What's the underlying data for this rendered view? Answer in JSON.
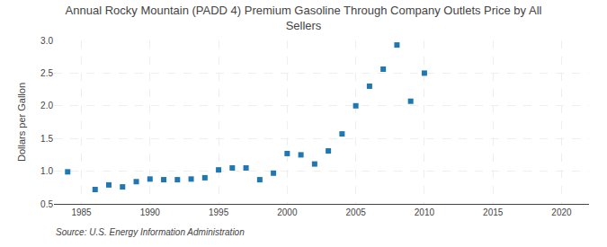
{
  "chart_data": {
    "type": "scatter",
    "title": "Annual Rocky Mountain (PADD 4) Premium Gasoline Through Company Outlets Price by All\nSellers",
    "ylabel": "Dollars per Gallon",
    "annotations": [
      "Source: U.S. Energy Information Administration"
    ],
    "marker": "square",
    "grid": true,
    "x": [
      1984,
      1986,
      1987,
      1988,
      1989,
      1990,
      1991,
      1992,
      1993,
      1994,
      1995,
      1996,
      1997,
      1998,
      1999,
      2000,
      2001,
      2002,
      2003,
      2004,
      2005,
      2006,
      2007,
      2008,
      2009,
      2010
    ],
    "values": [
      0.99,
      0.72,
      0.79,
      0.76,
      0.84,
      0.88,
      0.87,
      0.87,
      0.88,
      0.9,
      1.02,
      1.05,
      1.05,
      0.87,
      0.97,
      1.27,
      1.25,
      1.11,
      1.31,
      1.57,
      2.0,
      2.3,
      2.56,
      2.93,
      2.07,
      2.5
    ],
    "xlim": [
      1983,
      2022
    ],
    "ylim": [
      0.5,
      3.0
    ],
    "xticks": [
      1985,
      1990,
      1995,
      2000,
      2005,
      2010,
      2015,
      2020
    ],
    "yticks": [
      0.5,
      {
        "value": 1.0,
        "label": "1.0"
      },
      1.5,
      {
        "value": 2.0,
        "label": "2.0"
      },
      2.5,
      {
        "value": 3.0,
        "label": "3.0"
      }
    ]
  }
}
